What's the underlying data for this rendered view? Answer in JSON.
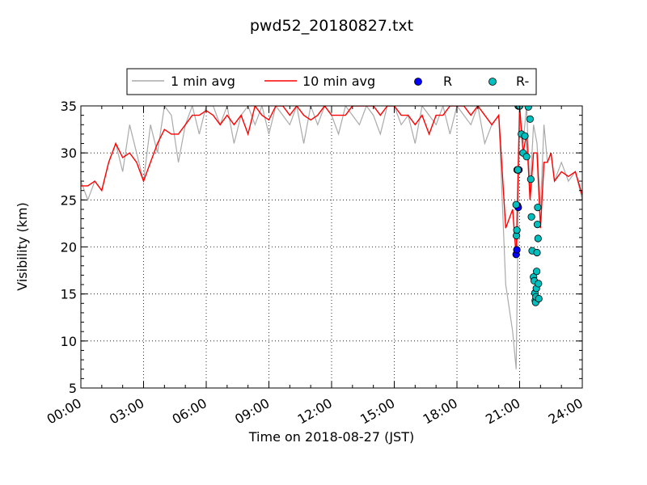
{
  "chart_data": {
    "type": "line",
    "title": "pwd52_20180827.txt",
    "xlabel": "Time on 2018-08-27 (JST)",
    "ylabel": "Visibility (km)",
    "xlim": [
      "00:00",
      "24:00"
    ],
    "ylim": [
      5,
      35
    ],
    "x_ticks": [
      "00:00",
      "03:00",
      "06:00",
      "09:00",
      "12:00",
      "15:00",
      "18:00",
      "21:00",
      "24:00"
    ],
    "y_ticks": [
      5,
      10,
      15,
      20,
      25,
      30,
      35
    ],
    "grid": true,
    "legend_position": "top",
    "series": [
      {
        "name": "1 min avg",
        "kind": "line",
        "color": "#aaaaaa",
        "x": [
          "00:00",
          "00:20",
          "00:40",
          "01:00",
          "01:20",
          "01:40",
          "02:00",
          "02:20",
          "02:40",
          "03:00",
          "03:20",
          "03:40",
          "04:00",
          "04:20",
          "04:40",
          "05:00",
          "05:20",
          "05:40",
          "06:00",
          "06:20",
          "06:40",
          "07:00",
          "07:20",
          "07:40",
          "08:00",
          "08:20",
          "08:40",
          "09:00",
          "09:20",
          "09:40",
          "10:00",
          "10:20",
          "10:40",
          "11:00",
          "11:20",
          "11:40",
          "12:00",
          "12:20",
          "12:40",
          "13:00",
          "13:20",
          "13:40",
          "14:00",
          "14:20",
          "14:40",
          "15:00",
          "15:20",
          "15:40",
          "16:00",
          "16:20",
          "16:40",
          "17:00",
          "17:20",
          "17:40",
          "18:00",
          "18:20",
          "18:40",
          "19:00",
          "19:20",
          "19:40",
          "20:00",
          "20:20",
          "20:40",
          "20:50",
          "21:00",
          "21:10",
          "21:20",
          "21:30",
          "21:40",
          "21:50",
          "22:00",
          "22:10",
          "22:20",
          "22:30",
          "22:40",
          "23:00",
          "23:20",
          "23:40",
          "24:00"
        ],
        "y": [
          27,
          25,
          27,
          26,
          29,
          31,
          28,
          33,
          30,
          27,
          33,
          30,
          35,
          34,
          29,
          33,
          35,
          32,
          35,
          35,
          33,
          35,
          31,
          34,
          35,
          33,
          35,
          32,
          35,
          34,
          33,
          35,
          31,
          35,
          33,
          35,
          34,
          32,
          35,
          34,
          33,
          35,
          34,
          32,
          35,
          35,
          33,
          34,
          31,
          35,
          34,
          33,
          35,
          32,
          35,
          34,
          33,
          35,
          31,
          33,
          34,
          16,
          11,
          7,
          34,
          31,
          35,
          26,
          33,
          31,
          24,
          33,
          29,
          30,
          27,
          29,
          27,
          28,
          25
        ]
      },
      {
        "name": "10 min avg",
        "kind": "line",
        "color": "#ff0000",
        "x": [
          "00:00",
          "00:20",
          "00:40",
          "01:00",
          "01:20",
          "01:40",
          "02:00",
          "02:20",
          "02:40",
          "03:00",
          "03:20",
          "03:40",
          "04:00",
          "04:20",
          "04:40",
          "05:00",
          "05:20",
          "05:40",
          "06:00",
          "06:20",
          "06:40",
          "07:00",
          "07:20",
          "07:40",
          "08:00",
          "08:20",
          "08:40",
          "09:00",
          "09:20",
          "09:40",
          "10:00",
          "10:20",
          "10:40",
          "11:00",
          "11:20",
          "11:40",
          "12:00",
          "12:20",
          "12:40",
          "13:00",
          "13:20",
          "13:40",
          "14:00",
          "14:20",
          "14:40",
          "15:00",
          "15:20",
          "15:40",
          "16:00",
          "16:20",
          "16:40",
          "17:00",
          "17:20",
          "17:40",
          "18:00",
          "18:20",
          "18:40",
          "19:00",
          "19:20",
          "19:40",
          "20:00",
          "20:20",
          "20:40",
          "20:50",
          "21:00",
          "21:10",
          "21:20",
          "21:30",
          "21:40",
          "21:50",
          "22:00",
          "22:10",
          "22:20",
          "22:30",
          "22:40",
          "23:00",
          "23:20",
          "23:40",
          "24:00"
        ],
        "y": [
          26.5,
          26.5,
          27,
          26,
          29,
          31,
          29.5,
          30,
          29,
          27,
          29,
          31,
          32.5,
          32,
          32,
          33,
          34,
          34,
          34.5,
          34,
          33,
          34,
          33,
          34,
          32,
          35,
          34,
          33.5,
          35,
          35,
          34,
          35,
          34,
          33.5,
          34,
          35,
          34,
          34,
          34,
          35,
          35,
          35,
          35,
          34,
          35,
          35,
          34,
          34,
          33,
          34,
          32,
          34,
          34,
          35,
          35,
          35,
          34,
          35,
          34,
          33,
          34,
          22,
          24,
          19,
          35,
          30,
          32,
          25,
          30,
          30,
          22,
          29,
          29,
          30,
          27,
          28,
          27.5,
          28,
          25.5
        ]
      },
      {
        "name": "R",
        "kind": "scatter",
        "color": "#0000ff",
        "x": [
          "20:50",
          "20:52",
          "20:54",
          "20:56",
          "20:58",
          "21:00"
        ],
        "y": [
          19.2,
          19.7,
          24.4,
          24.2,
          28.2,
          35
        ]
      },
      {
        "name": "R-",
        "kind": "scatter",
        "color": "#00bfbf",
        "x": [
          "20:50",
          "20:51",
          "20:52",
          "20:53",
          "20:55",
          "20:56",
          "20:57",
          "21:00",
          "21:05",
          "21:10",
          "21:15",
          "21:20",
          "21:25",
          "21:30",
          "21:32",
          "21:34",
          "21:36",
          "21:40",
          "21:42",
          "21:44",
          "21:45",
          "21:46",
          "21:47",
          "21:48",
          "21:49",
          "21:50",
          "21:51",
          "21:52",
          "21:53",
          "21:54",
          "21:55"
        ],
        "y": [
          24.5,
          21.2,
          21.8,
          28.2,
          28.2,
          35,
          35,
          35,
          32,
          30,
          31.8,
          29.6,
          34.9,
          33.6,
          27.2,
          23.2,
          19.6,
          16.8,
          16.4,
          15.1,
          14.3,
          14.1,
          14.7,
          15.6,
          17.4,
          19.4,
          22.4,
          24.2,
          20.9,
          16.1,
          14.5
        ]
      }
    ]
  }
}
